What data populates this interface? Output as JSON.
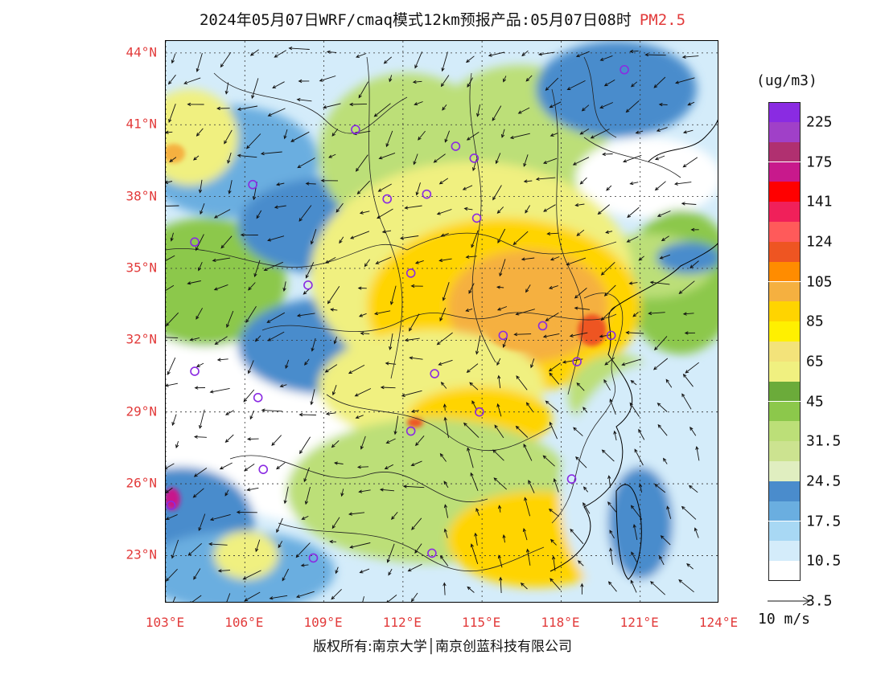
{
  "title": {
    "main": "2024年05月07日WRF/cmaq模式12km预报产品:05月07日08时",
    "species": "PM2.5"
  },
  "axes": {
    "lat_labels": [
      "44°N",
      "41°N",
      "38°N",
      "35°N",
      "32°N",
      "29°N",
      "26°N",
      "23°N"
    ],
    "lon_labels": [
      "103°E",
      "106°E",
      "109°E",
      "112°E",
      "115°E",
      "118°E",
      "121°E",
      "124°E"
    ]
  },
  "legend": {
    "unit": "(ug/m3)",
    "labels": [
      "225",
      "175",
      "141",
      "124",
      "105",
      "85",
      "65",
      "45",
      "31.5",
      "24.5",
      "17.5",
      "10.5",
      "3.5"
    ],
    "colors": [
      "#8a2be2",
      "#a040c8",
      "#b03070",
      "#c8198c",
      "#ff0000",
      "#f0205a",
      "#ff5a5a",
      "#ee5522",
      "#ff8c00",
      "#f5b040",
      "#ffd400",
      "#fff000",
      "#f3e37a",
      "#f0f080",
      "#6bab3a",
      "#8cc84b",
      "#bcdf78",
      "#cce390",
      "#e0eec0",
      "#4a8ccc",
      "#6aaee0",
      "#a8d8f4",
      "#d4ecfa",
      "#ffffff"
    ]
  },
  "wind_reference": {
    "label": "10 m/s"
  },
  "colors": {
    "accent_red": "#e23b3b",
    "text": "#111111"
  },
  "copyright": "版权所有:南京大学│南京创蓝科技有限公司",
  "map_extent": {
    "lon_min": 103,
    "lon_max": 124,
    "lat_min": 21,
    "lat_max": 44.5
  }
}
